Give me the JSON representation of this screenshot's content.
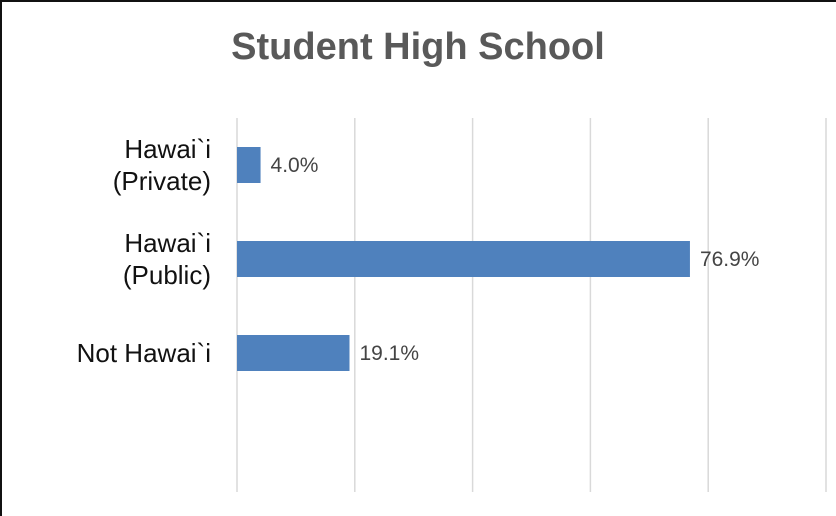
{
  "chart_data": {
    "type": "bar",
    "orientation": "horizontal",
    "title": "Student High School",
    "categories": [
      [
        "Hawai`i",
        "(Private)"
      ],
      [
        "Hawai`i",
        "(Public)"
      ],
      [
        "Not Hawai`i"
      ]
    ],
    "values": [
      4.0,
      76.9,
      19.1
    ],
    "value_labels": [
      "4.0%",
      "76.9%",
      "19.1%"
    ],
    "xlim": [
      0,
      100
    ],
    "grid": "vertical",
    "legend": "none",
    "bar_color": "#4f81bd",
    "grid_color": "#d9d9d9"
  }
}
